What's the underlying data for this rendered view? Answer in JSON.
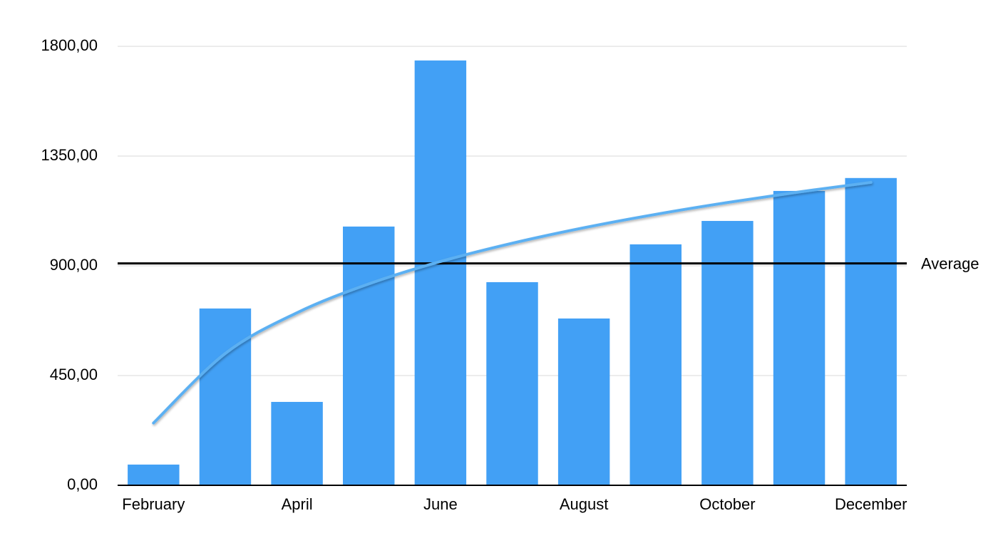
{
  "chart_data": {
    "type": "bar",
    "categories": [
      "February",
      null,
      "April",
      null,
      "June",
      null,
      "August",
      null,
      "October",
      null,
      "December"
    ],
    "values": [
      85,
      725,
      342,
      1061,
      1742,
      833,
      684,
      988,
      1084,
      1207,
      1260
    ],
    "color": "#42a0f5",
    "ylim": [
      0,
      1800
    ],
    "yticks": [
      {
        "value": 0,
        "label": "0,00"
      },
      {
        "value": 450,
        "label": "450,00"
      },
      {
        "value": 900,
        "label": "900,00"
      },
      {
        "value": 1350,
        "label": "1350,00"
      },
      {
        "value": 1800,
        "label": "1800,00"
      }
    ],
    "grid": true,
    "average": {
      "label": "Average",
      "value": 910
    },
    "trendline": {
      "type": "logarithmic",
      "color": "#5cb0f2"
    }
  }
}
